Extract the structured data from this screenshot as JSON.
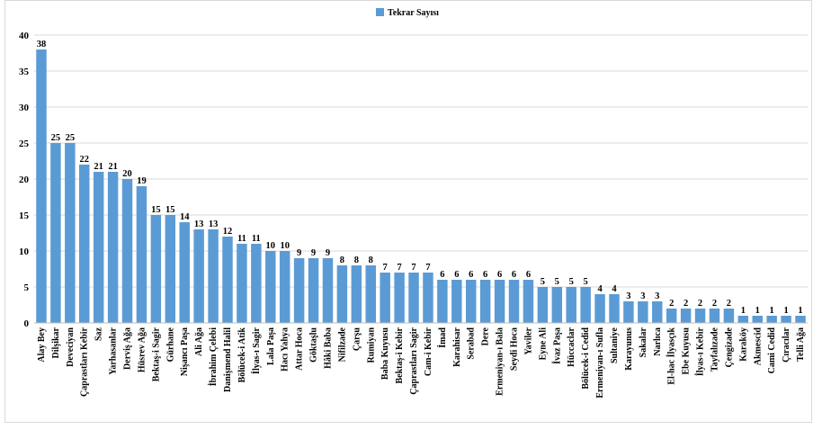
{
  "chart_data": {
    "type": "bar",
    "legend_position": "top",
    "grid": true,
    "ylim": [
      0,
      40
    ],
    "yticks": [
      0,
      5,
      10,
      15,
      20,
      25,
      30,
      35,
      40
    ],
    "series": [
      {
        "name": "Tekrar Sayısı",
        "color": "#5b9bd5",
        "values": [
          38,
          25,
          25,
          22,
          21,
          21,
          20,
          19,
          15,
          15,
          14,
          13,
          13,
          12,
          11,
          11,
          10,
          10,
          9,
          9,
          9,
          8,
          8,
          8,
          7,
          7,
          7,
          7,
          6,
          6,
          6,
          6,
          6,
          6,
          6,
          5,
          5,
          5,
          5,
          4,
          4,
          3,
          3,
          3,
          2,
          2,
          2,
          2,
          2,
          1,
          1,
          1,
          1,
          1
        ]
      }
    ],
    "categories": [
      "Alay Bey",
      "Dilşikar",
      "Deveciyan",
      "Çaprastları Kebir",
      "Saz",
      "Yarhasanlar",
      "Derviş Ağa",
      "Hüsrev Ağa",
      "Bektaş-i Sagir",
      "Gürhane",
      "Nişancı Paşa",
      "Ali Ağa",
      "İbrahim Çelebi",
      "Danişmend Halil",
      "Bölücek-i Atik",
      "İlyas-ı Sagir",
      "Lala Paşa",
      "Hacı Yahya",
      "Attar Hoca",
      "Göktaşlu",
      "Hâki Baba",
      "Nifilzade",
      "Çarşu",
      "Rumiyan",
      "Baba Kuyusu",
      "Bektaş-i Kebir",
      "Çaprastları Sagir",
      "Cam-i Kebir",
      "İmad",
      "Karahisar",
      "Serabad",
      "Dere",
      "Ermeniyan-ı Bala",
      "Seydi Hoca",
      "Yaviler",
      "Eyne Ali",
      "İvaz Paşa",
      "Hüccaclar",
      "Bölücek-i Cedid",
      "Ermeniyan-ı Sufla",
      "Sultaniye",
      "Karayunus",
      "Sakalar",
      "Narlıca",
      "El-hac İlyasçık",
      "Ebe Kuyusu",
      "İlyas-ı Kebir",
      "Tayfalızade",
      "Çengizade",
      "Karaköy",
      "Akmescid",
      "Cami Cedid",
      "Çıracılar",
      "Telli Ağa"
    ]
  }
}
